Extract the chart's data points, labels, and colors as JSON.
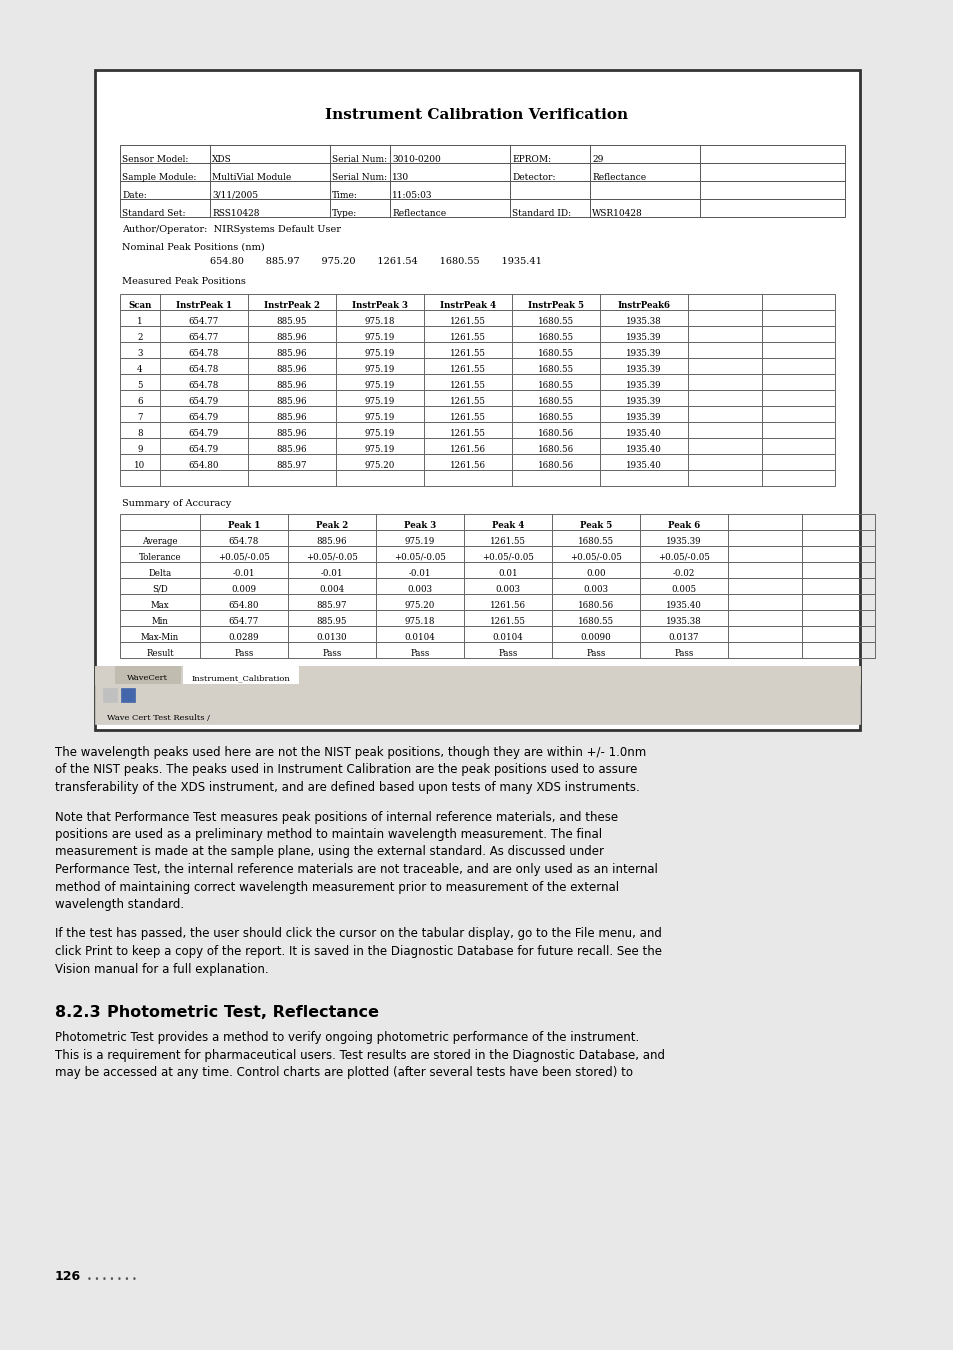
{
  "bg_color": "#ffffff",
  "page_bg": "#f0f0f0",
  "title": "Instrument Calibration Verification",
  "info_rows": [
    [
      "Sensor Model:",
      "XDS",
      "Serial Num:",
      "3010-0200",
      "EPROM:",
      "29"
    ],
    [
      "Sample Module:",
      "MultiVial Module",
      "Serial Num:",
      "130",
      "Detector:",
      "Reflectance"
    ],
    [
      "Date:",
      "3/11/2005",
      "Time:",
      "11:05:03",
      "",
      ""
    ],
    [
      "Standard Set:",
      "RSS10428",
      "Type:",
      "Reflectance",
      "Standard ID:",
      "WSR10428"
    ]
  ],
  "author_line": "Author/Operator:  NIRSystems Default User",
  "nominal_label": "Nominal Peak Positions (nm)",
  "nominal_peaks": "654.80       885.97       975.20       1261.54       1680.55       1935.41",
  "measured_label": "Measured Peak Positions",
  "scan_headers": [
    "Scan",
    "InstrPeak 1",
    "InstrPeak 2",
    "InstrPeak 3",
    "InstrPeak 4",
    "InstrPeak 5",
    "InstrPeak6"
  ],
  "scan_data": [
    [
      "1",
      "654.77",
      "885.95",
      "975.18",
      "1261.55",
      "1680.55",
      "1935.38"
    ],
    [
      "2",
      "654.77",
      "885.96",
      "975.19",
      "1261.55",
      "1680.55",
      "1935.39"
    ],
    [
      "3",
      "654.78",
      "885.96",
      "975.19",
      "1261.55",
      "1680.55",
      "1935.39"
    ],
    [
      "4",
      "654.78",
      "885.96",
      "975.19",
      "1261.55",
      "1680.55",
      "1935.39"
    ],
    [
      "5",
      "654.78",
      "885.96",
      "975.19",
      "1261.55",
      "1680.55",
      "1935.39"
    ],
    [
      "6",
      "654.79",
      "885.96",
      "975.19",
      "1261.55",
      "1680.55",
      "1935.39"
    ],
    [
      "7",
      "654.79",
      "885.96",
      "975.19",
      "1261.55",
      "1680.55",
      "1935.39"
    ],
    [
      "8",
      "654.79",
      "885.96",
      "975.19",
      "1261.55",
      "1680.56",
      "1935.40"
    ],
    [
      "9",
      "654.79",
      "885.96",
      "975.19",
      "1261.56",
      "1680.56",
      "1935.40"
    ],
    [
      "10",
      "654.80",
      "885.97",
      "975.20",
      "1261.56",
      "1680.56",
      "1935.40"
    ]
  ],
  "summary_label": "Summary of Accuracy",
  "summary_headers": [
    "",
    "Peak 1",
    "Peak 2",
    "Peak 3",
    "Peak 4",
    "Peak 5",
    "Peak 6"
  ],
  "summary_data": [
    [
      "Average",
      "654.78",
      "885.96",
      "975.19",
      "1261.55",
      "1680.55",
      "1935.39"
    ],
    [
      "Tolerance",
      "+0.05/-0.05",
      "+0.05/-0.05",
      "+0.05/-0.05",
      "+0.05/-0.05",
      "+0.05/-0.05",
      "+0.05/-0.05"
    ],
    [
      "Delta",
      "-0.01",
      "-0.01",
      "-0.01",
      "0.01",
      "0.00",
      "-0.02"
    ],
    [
      "S/D",
      "0.009",
      "0.004",
      "0.003",
      "0.003",
      "0.003",
      "0.005"
    ],
    [
      "Max",
      "654.80",
      "885.97",
      "975.20",
      "1261.56",
      "1680.56",
      "1935.40"
    ],
    [
      "Min",
      "654.77",
      "885.95",
      "975.18",
      "1261.55",
      "1680.55",
      "1935.38"
    ],
    [
      "Max-Min",
      "0.0289",
      "0.0130",
      "0.0104",
      "0.0104",
      "0.0090",
      "0.0137"
    ],
    [
      "Result",
      "Pass",
      "Pass",
      "Pass",
      "Pass",
      "Pass",
      "Pass"
    ]
  ],
  "tab_labels": [
    "WaveCert",
    "Instrument_Calibration"
  ],
  "active_tab": "Instrument_Calibration",
  "para1": "The wavelength peaks used here are not the NIST peak positions, though they are within +/- 1.0nm\nof the NIST peaks. The peaks used in Instrument Calibration are the peak positions used to assure\ntransferability of the XDS instrument, and are defined based upon tests of many XDS instruments.",
  "para2": "Note that Performance Test measures peak positions of internal reference materials, and these\npositions are used as a preliminary method to maintain wavelength measurement. The final\nmeasurement is made at the sample plane, using the external standard. As discussed under\nPerformance Test, the internal reference materials are not traceable, and are only used as an internal\nmethod of maintaining correct wavelength measurement prior to measurement of the external\nwavelength standard.",
  "para3": "If the test has passed, the user should click the cursor on the tabular display, go to the File menu, and\nclick Print to keep a copy of the report. It is saved in the Diagnostic Database for future recall. See the\nVision manual for a full explanation.",
  "section_num": "8.2.3",
  "section_title": "Photometric Test, Reflectance",
  "section_body": "Photometric Test provides a method to verify ongoing photometric performance of the instrument.\nThis is a requirement for pharmaceutical users. Test results are stored in the Diagnostic Database, and\nmay be accessed at any time. Control charts are plotted (after several tests have been stored) to",
  "page_num": "126",
  "dots": "• • • • • • •"
}
